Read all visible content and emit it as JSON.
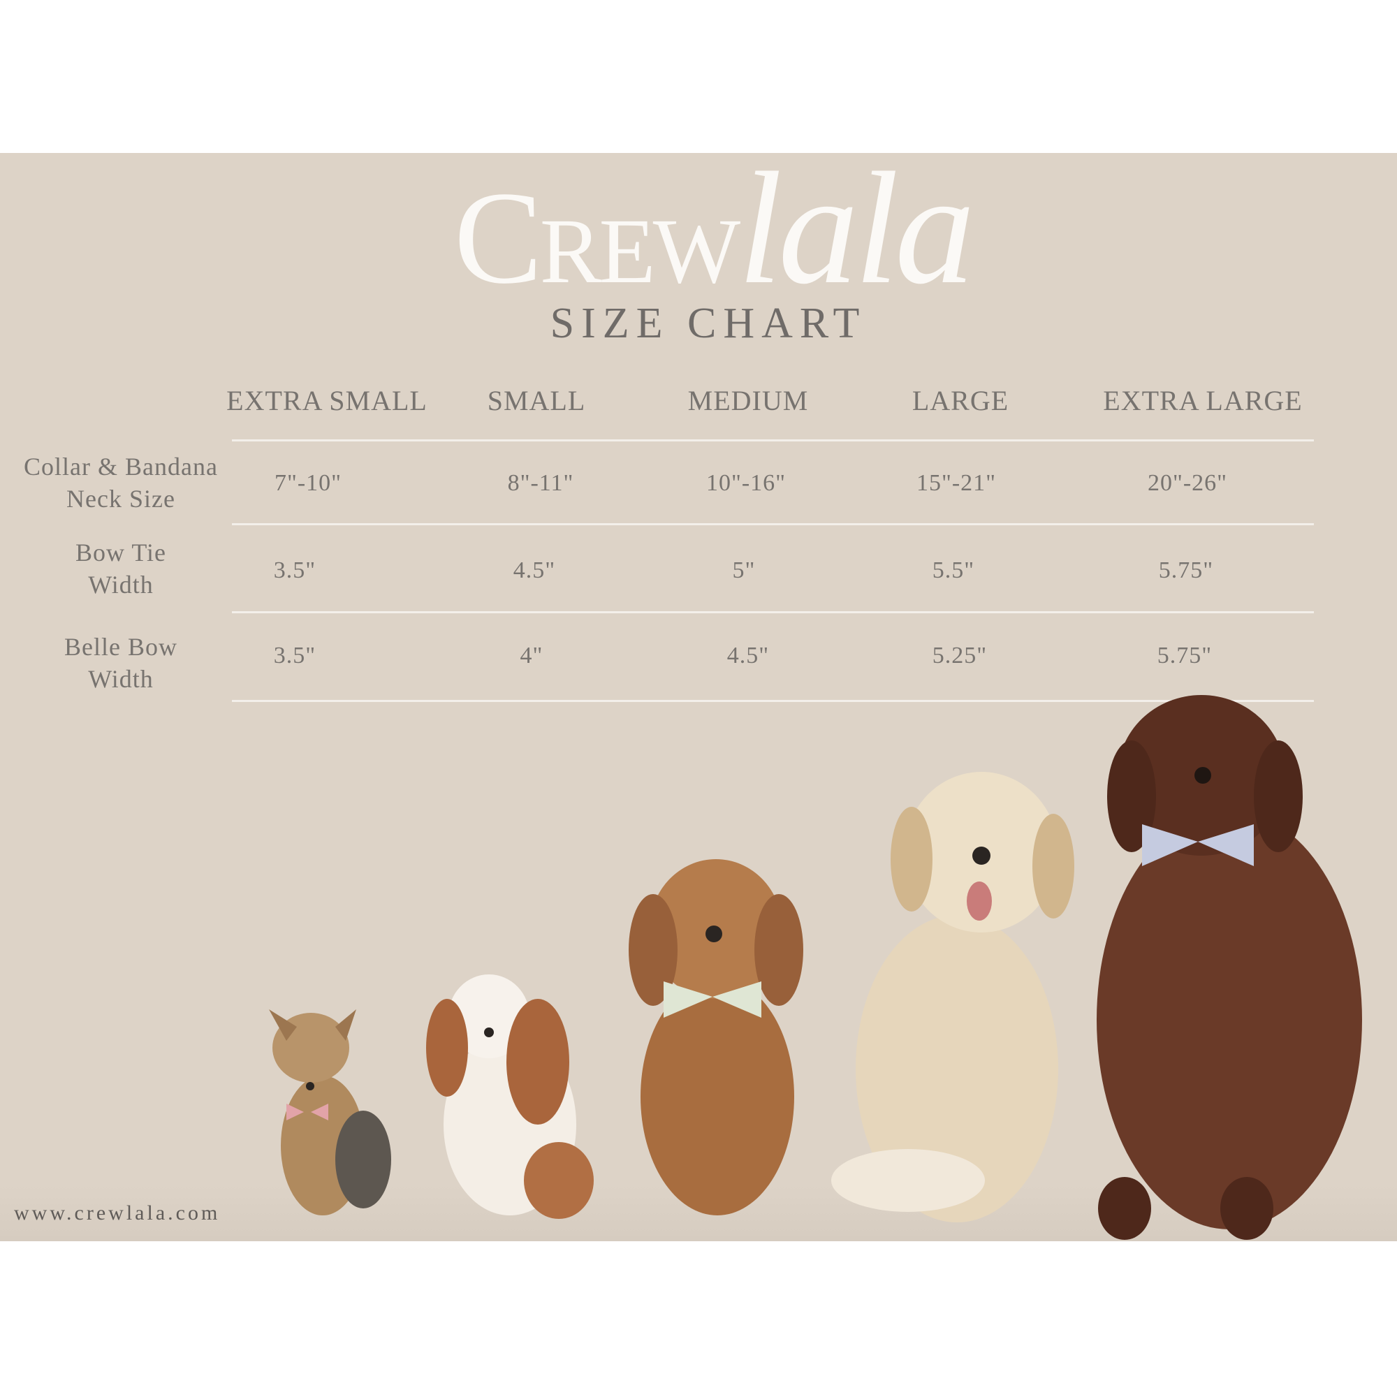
{
  "brand": {
    "logo_caps": "Crew",
    "logo_script": "lala"
  },
  "title": "SIZE CHART",
  "columns": [
    "EXTRA SMALL",
    "SMALL",
    "MEDIUM",
    "LARGE",
    "EXTRA LARGE"
  ],
  "rows": [
    {
      "label_line1": "Collar & Bandana",
      "label_line2": "Neck Size",
      "values": [
        "7\"-10\"",
        "8\"-11\"",
        "10\"-16\"",
        "15\"-21\"",
        "20\"-26\""
      ]
    },
    {
      "label_line1": "Bow Tie",
      "label_line2": "Width",
      "values": [
        "3.5\"",
        "4.5\"",
        "5\"",
        "5.5\"",
        "5.75\""
      ]
    },
    {
      "label_line1": "Belle Bow",
      "label_line2": "Width",
      "values": [
        "3.5\"",
        "4\"",
        "4.5\"",
        "5.25\"",
        "5.75\""
      ]
    }
  ],
  "website": "www.crewlala.com",
  "illustrations": [
    "yorkshire-terrier-pink-bow",
    "cavalier-king-charles-spaniel",
    "cockapoo-green-bow",
    "golden-retriever",
    "newfoundland-blue-bow"
  ],
  "colors": {
    "background": "#ddd3c7",
    "text": "#77736f",
    "logo": "#fbf9f6",
    "rule": "#f3efea"
  }
}
